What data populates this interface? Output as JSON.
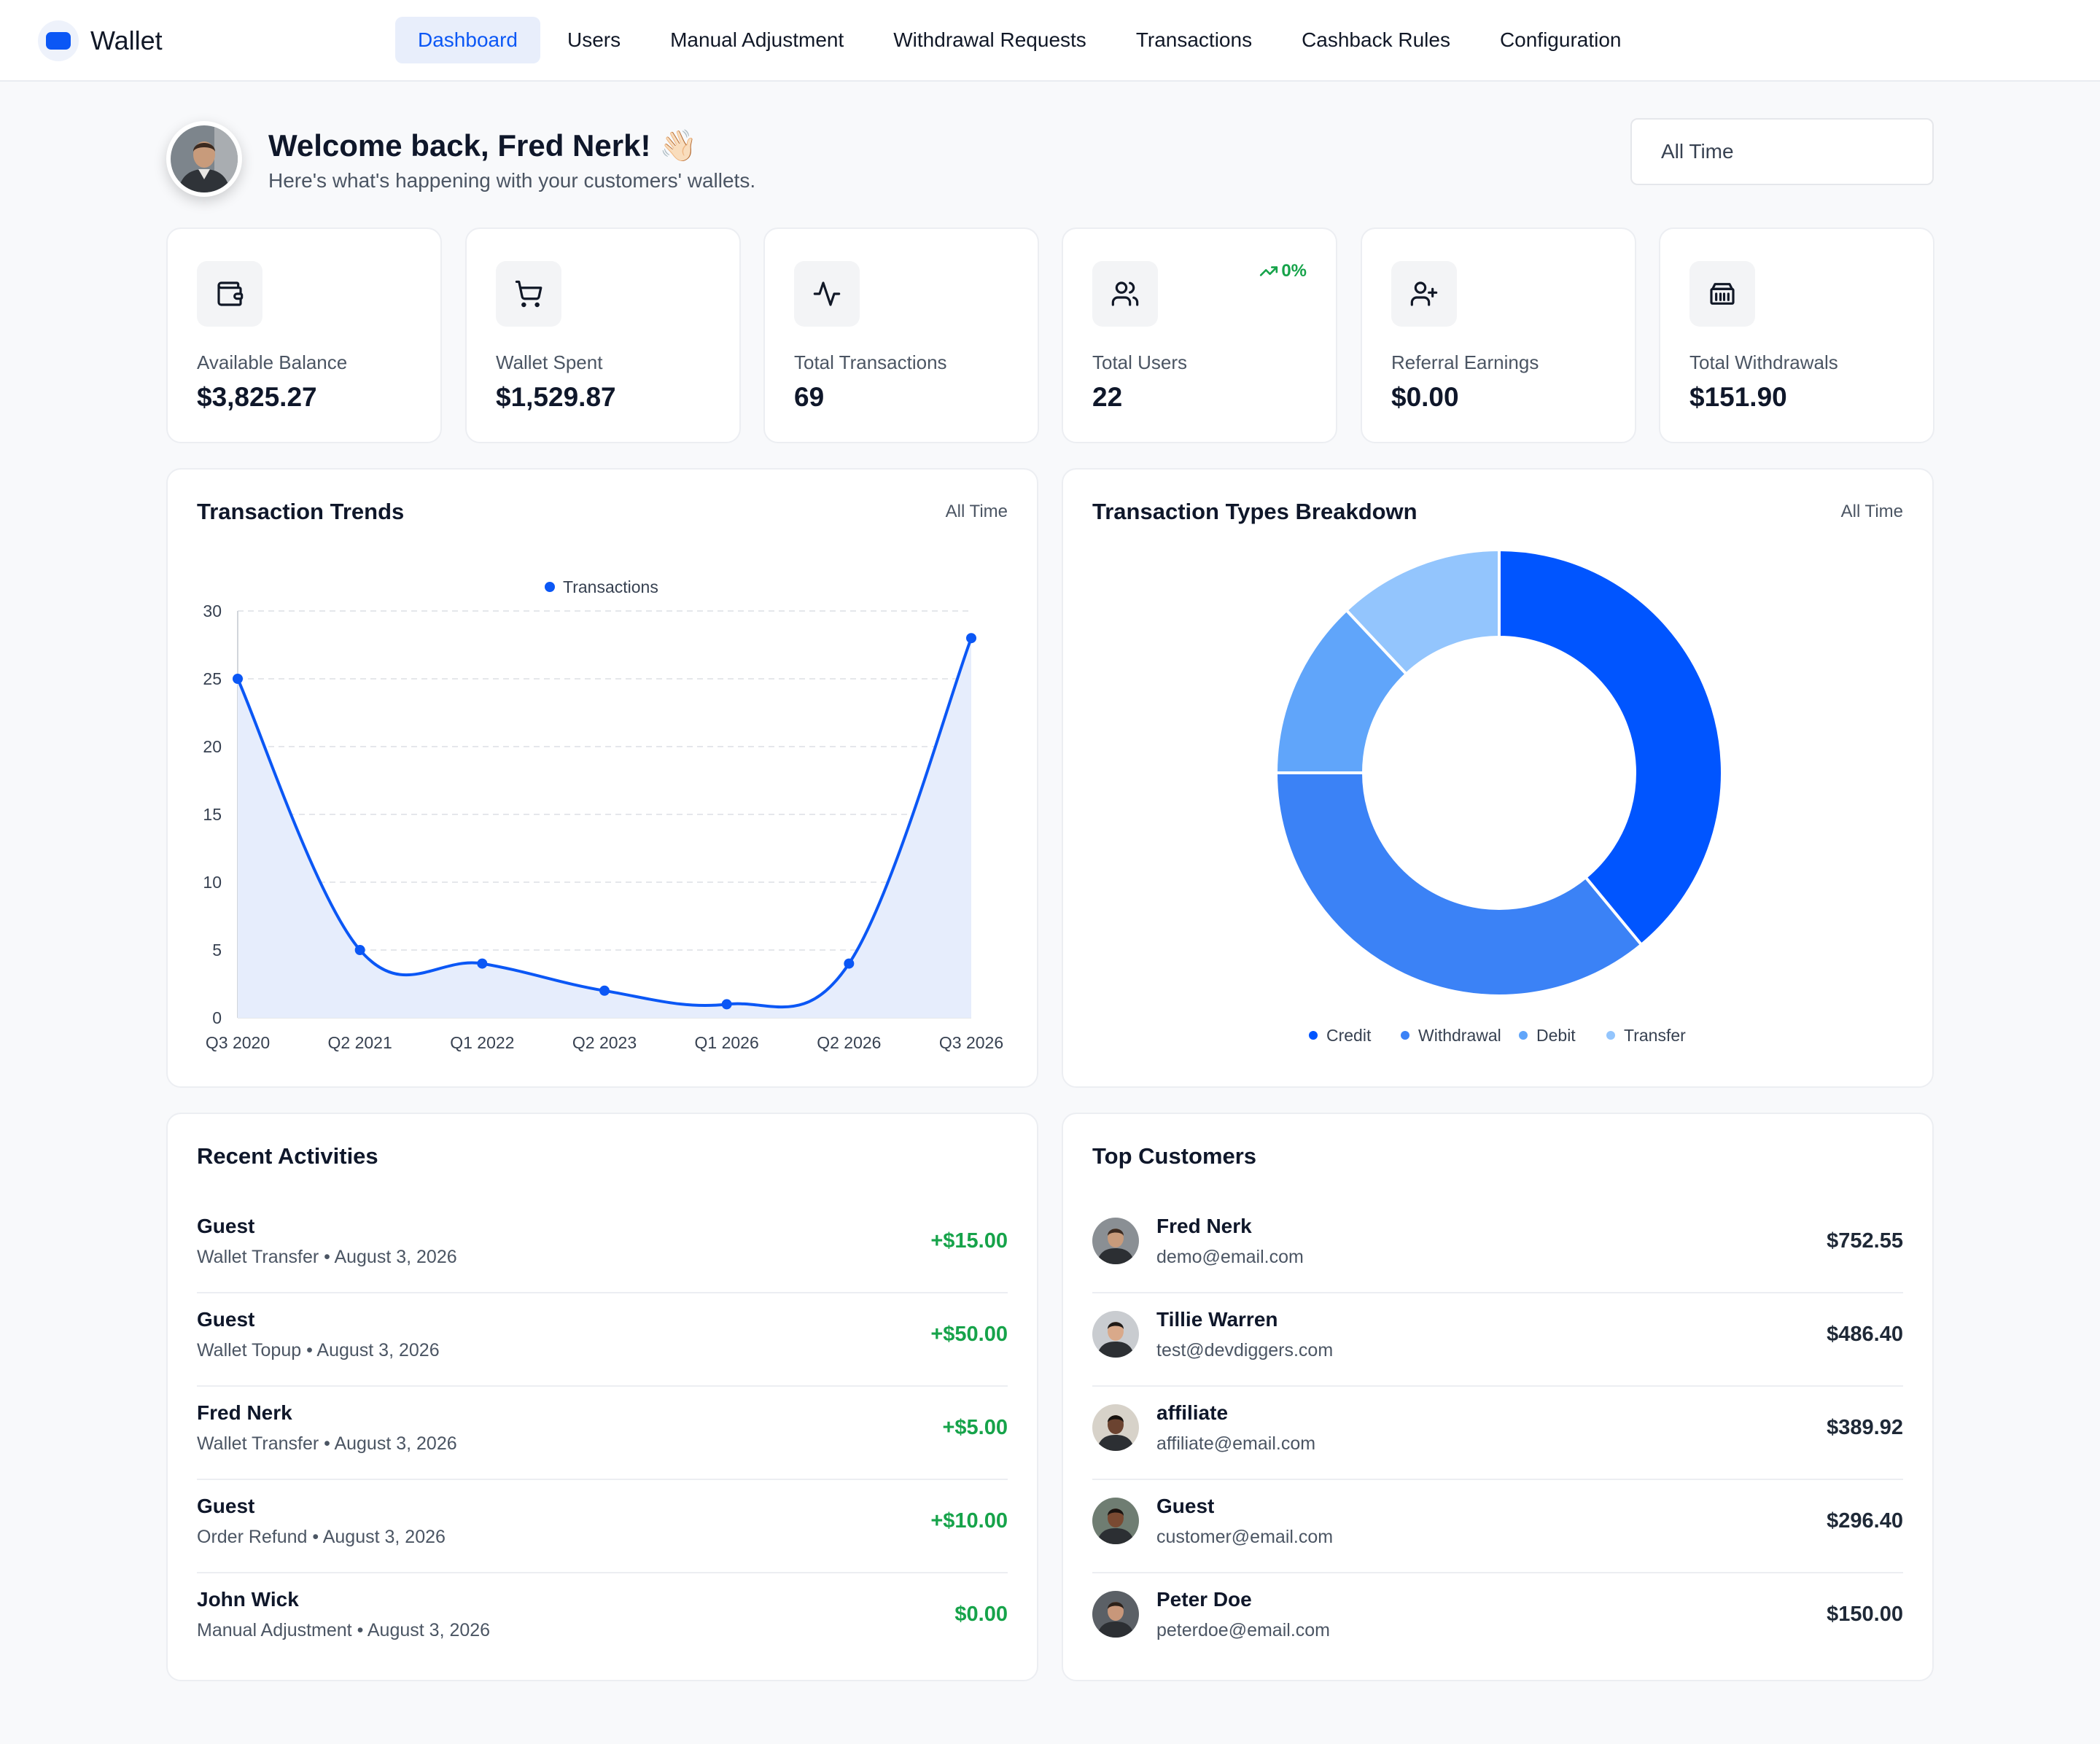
{
  "app": {
    "title": "Wallet"
  },
  "nav": [
    {
      "label": "Dashboard",
      "active": true
    },
    {
      "label": "Users"
    },
    {
      "label": "Manual Adjustment"
    },
    {
      "label": "Withdrawal Requests"
    },
    {
      "label": "Transactions"
    },
    {
      "label": "Cashback Rules"
    },
    {
      "label": "Configuration"
    }
  ],
  "header": {
    "title": "Welcome back, Fred Nerk! 👋🏻",
    "subtitle": "Here's what's happening with your customers' wallets.",
    "range": "All Time"
  },
  "stats": [
    {
      "label": "Available Balance",
      "value": "$3,825.27",
      "icon": "wallet-icon"
    },
    {
      "label": "Wallet Spent",
      "value": "$1,529.87",
      "icon": "cart-icon"
    },
    {
      "label": "Total Transactions",
      "value": "69",
      "icon": "activity-icon"
    },
    {
      "label": "Total Users",
      "value": "22",
      "icon": "users-icon",
      "trend": "0%"
    },
    {
      "label": "Referral Earnings",
      "value": "$0.00",
      "icon": "user-plus-icon"
    },
    {
      "label": "Total Withdrawals",
      "value": "$151.90",
      "icon": "bank-icon"
    }
  ],
  "trends": {
    "title": "Transaction Trends",
    "range": "All Time"
  },
  "breakdown": {
    "title": "Transaction Types Breakdown",
    "range": "All Time"
  },
  "chart_data": [
    {
      "type": "area",
      "title": "Transaction Trends",
      "categories": [
        "Q3 2020",
        "Q2 2021",
        "Q1 2022",
        "Q2 2023",
        "Q1 2026",
        "Q2 2026",
        "Q3 2026"
      ],
      "series": [
        {
          "name": "Transactions",
          "values": [
            25,
            5,
            4,
            2,
            1,
            4,
            28
          ]
        }
      ],
      "yticks": [
        0,
        5,
        10,
        15,
        20,
        25,
        30
      ],
      "ylim": [
        0,
        30
      ],
      "legend": "top",
      "grid": true,
      "color": "#0b57f5"
    },
    {
      "type": "pie",
      "title": "Transaction Types Breakdown",
      "labels": [
        "Credit",
        "Withdrawal",
        "Debit",
        "Transfer"
      ],
      "values": [
        39,
        36,
        13,
        12
      ],
      "colors": [
        "#0055ff",
        "#3b82f6",
        "#60a5fa",
        "#93c5fd"
      ],
      "legend": "bottom",
      "donut": true
    }
  ],
  "recent": {
    "title": "Recent Activities",
    "items": [
      {
        "name": "Guest",
        "meta": "Wallet Transfer • August 3, 2026",
        "amount": "+$15.00"
      },
      {
        "name": "Guest",
        "meta": "Wallet Topup • August 3, 2026",
        "amount": "+$50.00"
      },
      {
        "name": "Fred Nerk",
        "meta": "Wallet Transfer • August 3, 2026",
        "amount": "+$5.00"
      },
      {
        "name": "Guest",
        "meta": "Order Refund • August 3, 2026",
        "amount": "+$10.00"
      },
      {
        "name": "John Wick",
        "meta": "Manual Adjustment • August 3, 2026",
        "amount": "$0.00"
      }
    ]
  },
  "customers": {
    "title": "Top Customers",
    "items": [
      {
        "name": "Fred Nerk",
        "email": "demo@email.com",
        "amount": "$752.55",
        "skin": "#c89b7b",
        "hair": "#3b2a20",
        "bg": "#8a8f94"
      },
      {
        "name": "Tillie Warren",
        "email": "test@devdiggers.com",
        "amount": "$486.40",
        "skin": "#d9a98a",
        "hair": "#1f1a17",
        "bg": "#c9ccd0"
      },
      {
        "name": "affiliate",
        "email": "affiliate@email.com",
        "amount": "$389.92",
        "skin": "#6b4330",
        "hair": "#16110e",
        "bg": "#d7d2c9"
      },
      {
        "name": "Guest",
        "email": "customer@email.com",
        "amount": "$296.40",
        "skin": "#7a4a32",
        "hair": "#1a1310",
        "bg": "#6f7d72"
      },
      {
        "name": "Peter Doe",
        "email": "peterdoe@email.com",
        "amount": "$150.00",
        "skin": "#c8977a",
        "hair": "#2b2019",
        "bg": "#5b6066"
      }
    ]
  }
}
